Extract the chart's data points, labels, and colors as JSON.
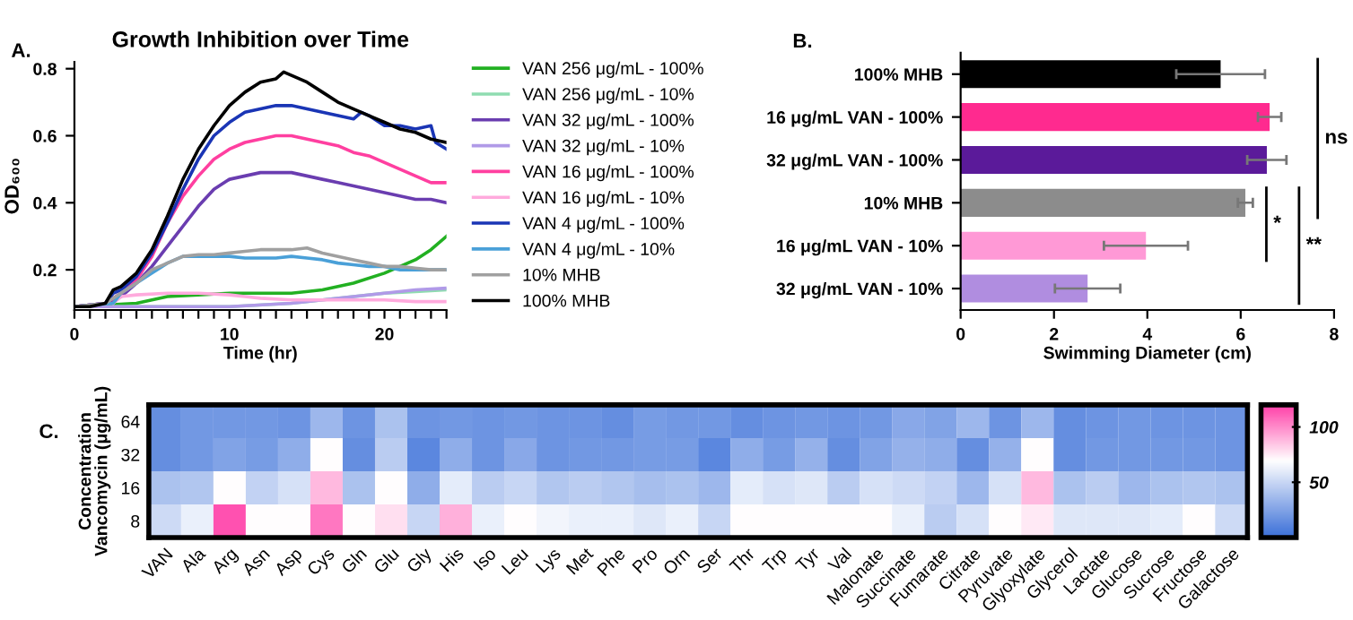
{
  "chart_data": [
    {
      "type": "line",
      "title": "Growth Inhibition over Time",
      "xlabel": "Time (hr)",
      "ylabel": "OD₆₀₀",
      "annotations": [
        "A."
      ],
      "xlim": [
        0,
        24
      ],
      "ylim": [
        0.08,
        0.82
      ],
      "xticks": [
        0,
        {
          "value": 1,
          "label": null
        },
        {
          "value": 2,
          "label": null
        },
        {
          "value": 3,
          "label": null
        },
        {
          "value": 4,
          "label": null
        },
        {
          "value": 5,
          "label": null
        },
        {
          "value": 6,
          "label": null
        },
        {
          "value": 7,
          "label": null
        },
        {
          "value": 8,
          "label": null
        },
        {
          "value": 9,
          "label": null
        },
        10,
        {
          "value": 11,
          "label": null
        },
        {
          "value": 12,
          "label": null
        },
        {
          "value": 13,
          "label": null
        },
        {
          "value": 14,
          "label": null
        },
        {
          "value": 15,
          "label": null
        },
        {
          "value": 16,
          "label": null
        },
        {
          "value": 17,
          "label": null
        },
        {
          "value": 18,
          "label": null
        },
        {
          "value": 19,
          "label": null
        },
        20,
        {
          "value": 21,
          "label": null
        },
        {
          "value": 22,
          "label": null
        },
        {
          "value": 23,
          "label": null
        },
        {
          "value": 24,
          "label": null
        }
      ],
      "yticks": [
        0.2,
        0.4,
        0.6,
        0.8
      ],
      "grid": false,
      "legend": "right",
      "marker": "none",
      "line_style": "solid",
      "series": [
        {
          "name": "VAN 256 μg/mL - 100%",
          "color": "#22b022",
          "x": [
            0,
            4,
            5,
            6,
            8,
            10,
            12,
            14,
            16,
            18,
            20,
            21,
            22,
            23,
            24
          ],
          "values": [
            0.09,
            0.1,
            0.11,
            0.12,
            0.125,
            0.13,
            0.13,
            0.13,
            0.14,
            0.16,
            0.19,
            0.21,
            0.23,
            0.26,
            0.3
          ]
        },
        {
          "name": "VAN 256 μg/mL - 10%",
          "color": "#8fdcb0",
          "x": [
            0,
            10,
            14,
            16,
            18,
            20,
            22,
            24
          ],
          "values": [
            0.09,
            0.09,
            0.1,
            0.11,
            0.12,
            0.13,
            0.135,
            0.14
          ]
        },
        {
          "name": "VAN 32 μg/mL - 100%",
          "color": "#6a3db0",
          "x": [
            0,
            2,
            3,
            4,
            5,
            6,
            7,
            8,
            9,
            10,
            11,
            12,
            13,
            14,
            15,
            16,
            17,
            18,
            19,
            20,
            21,
            22,
            23,
            24
          ],
          "values": [
            0.09,
            0.1,
            0.12,
            0.16,
            0.21,
            0.27,
            0.33,
            0.39,
            0.44,
            0.47,
            0.48,
            0.49,
            0.49,
            0.49,
            0.48,
            0.47,
            0.46,
            0.45,
            0.44,
            0.43,
            0.42,
            0.41,
            0.41,
            0.4
          ]
        },
        {
          "name": "VAN 32 μg/mL - 10%",
          "color": "#b09ae8",
          "x": [
            0,
            10,
            14,
            16,
            18,
            20,
            22,
            24
          ],
          "values": [
            0.09,
            0.09,
            0.1,
            0.11,
            0.12,
            0.13,
            0.14,
            0.145
          ]
        },
        {
          "name": "VAN 16 μg/mL - 100%",
          "color": "#ff3fa0",
          "x": [
            0,
            2,
            3,
            4,
            5,
            6,
            7,
            8,
            9,
            10,
            11,
            12,
            13,
            14,
            15,
            16,
            17,
            18,
            19,
            20,
            21,
            22,
            23,
            24
          ],
          "values": [
            0.09,
            0.1,
            0.13,
            0.17,
            0.24,
            0.34,
            0.42,
            0.48,
            0.53,
            0.56,
            0.58,
            0.59,
            0.6,
            0.6,
            0.59,
            0.58,
            0.57,
            0.55,
            0.54,
            0.52,
            0.5,
            0.48,
            0.46,
            0.46
          ]
        },
        {
          "name": "VAN 16 μg/mL - 10%",
          "color": "#ffaadd",
          "x": [
            2.5,
            3,
            4,
            6,
            8,
            10,
            11,
            12,
            14,
            16,
            18,
            20,
            22,
            24
          ],
          "values": [
            0.1,
            0.12,
            0.125,
            0.13,
            0.13,
            0.125,
            0.12,
            0.115,
            0.11,
            0.11,
            0.11,
            0.11,
            0.105,
            0.105
          ]
        },
        {
          "name": "VAN 4 μg/mL - 100%",
          "color": "#1a35b5",
          "x": [
            0,
            2,
            2.5,
            3,
            4,
            5,
            6,
            7,
            8,
            9,
            10,
            11,
            12,
            13,
            14,
            15,
            16,
            17,
            18,
            18.5,
            19,
            20,
            21,
            22,
            23,
            23.3,
            24
          ],
          "values": [
            0.09,
            0.1,
            0.13,
            0.14,
            0.18,
            0.25,
            0.34,
            0.44,
            0.53,
            0.6,
            0.64,
            0.67,
            0.68,
            0.69,
            0.69,
            0.68,
            0.67,
            0.66,
            0.65,
            0.67,
            0.66,
            0.63,
            0.63,
            0.62,
            0.63,
            0.58,
            0.56
          ]
        },
        {
          "name": "VAN 4 μg/mL - 10%",
          "color": "#4aa0d8",
          "x": [
            0,
            2.5,
            3,
            4,
            5,
            6,
            7,
            8,
            9,
            10,
            11,
            12,
            13,
            14,
            15,
            16,
            17,
            18,
            19,
            20,
            21,
            22,
            23,
            24
          ],
          "values": [
            0.09,
            0.1,
            0.13,
            0.16,
            0.19,
            0.22,
            0.24,
            0.24,
            0.24,
            0.24,
            0.235,
            0.235,
            0.235,
            0.24,
            0.235,
            0.23,
            0.22,
            0.215,
            0.21,
            0.21,
            0.2,
            0.2,
            0.2,
            0.2
          ]
        },
        {
          "name": "10% MHB",
          "color": "#a0a0a0",
          "x": [
            0,
            2,
            3,
            4,
            5,
            6,
            7,
            8,
            9,
            10,
            11,
            12,
            13,
            14,
            15,
            16,
            17,
            18,
            19,
            20,
            21,
            22,
            23,
            24
          ],
          "values": [
            0.09,
            0.1,
            0.13,
            0.16,
            0.2,
            0.22,
            0.24,
            0.245,
            0.245,
            0.25,
            0.255,
            0.26,
            0.26,
            0.26,
            0.265,
            0.25,
            0.24,
            0.23,
            0.22,
            0.21,
            0.21,
            0.205,
            0.2,
            0.2
          ]
        },
        {
          "name": "100% MHB",
          "color": "#000000",
          "x": [
            0,
            1,
            2,
            2.5,
            3,
            4,
            5,
            6,
            7,
            8,
            9,
            10,
            11,
            12,
            13,
            13.5,
            14,
            15,
            16,
            17,
            18,
            19,
            20,
            21,
            22,
            23,
            24
          ],
          "values": [
            0.09,
            0.09,
            0.1,
            0.14,
            0.15,
            0.19,
            0.26,
            0.36,
            0.47,
            0.56,
            0.63,
            0.69,
            0.73,
            0.76,
            0.77,
            0.79,
            0.78,
            0.76,
            0.73,
            0.7,
            0.68,
            0.66,
            0.64,
            0.62,
            0.61,
            0.59,
            0.58
          ]
        }
      ]
    },
    {
      "type": "bar",
      "orientation": "horizontal",
      "xlabel": "Swimming Diameter (cm)",
      "annotations": [
        "B.",
        "ns",
        "*",
        "**"
      ],
      "categories": [
        "100% MHB",
        "16 μg/mL VAN - 100%",
        "32 μg/mL VAN - 100%",
        "10% MHB",
        "16 μg/mL VAN - 10%",
        "32 μg/mL VAN - 10%"
      ],
      "values": [
        5.57,
        6.62,
        6.56,
        6.1,
        3.97,
        2.72
      ],
      "errors": [
        0.95,
        0.25,
        0.42,
        0.16,
        0.9,
        0.7
      ],
      "colors": [
        "#000000",
        "#ff2a8f",
        "#5b1a9a",
        "#8c8c8c",
        "#ff99d6",
        "#b08de0"
      ],
      "xlim": [
        0,
        8
      ],
      "xticks": [
        0,
        2,
        4,
        6,
        8
      ],
      "grid": false
    },
    {
      "type": "heatmap",
      "ylabel": "Concentration\nVancomycin (μg/mL)",
      "annotations": [
        "C."
      ],
      "categories": [
        "VAN",
        "Ala",
        "Arg",
        "Asn",
        "Asp",
        "Cys",
        "Gln",
        "Glu",
        "Gly",
        "His",
        "Iso",
        "Leu",
        "Lys",
        "Met",
        "Phe",
        "Pro",
        "Orn",
        "Ser",
        "Thr",
        "Trp",
        "Tyr",
        "Val",
        "Malonate",
        "Succinate",
        "Fumarate",
        "Citrate",
        "Pyruvate",
        "Glyoxylate",
        "Glycerol",
        "Lactate",
        "Glucose",
        "Sucrose",
        "Fructose",
        "Galactose"
      ],
      "y_categories": [
        "64",
        "32",
        "16",
        "8"
      ],
      "cells": [
        [
          15,
          20,
          20,
          20,
          18,
          35,
          18,
          40,
          18,
          20,
          18,
          20,
          18,
          18,
          15,
          22,
          20,
          20,
          15,
          18,
          20,
          18,
          20,
          28,
          25,
          35,
          18,
          35,
          15,
          18,
          20,
          18,
          18,
          18
        ],
        [
          15,
          20,
          25,
          22,
          30,
          70,
          15,
          45,
          12,
          30,
          18,
          28,
          18,
          20,
          20,
          22,
          22,
          12,
          30,
          22,
          32,
          15,
          25,
          32,
          30,
          15,
          32,
          70,
          15,
          20,
          20,
          20,
          20,
          18
        ],
        [
          40,
          42,
          70,
          48,
          55,
          88,
          40,
          70,
          30,
          60,
          45,
          50,
          42,
          45,
          42,
          38,
          40,
          35,
          60,
          55,
          58,
          45,
          55,
          52,
          48,
          35,
          55,
          88,
          40,
          45,
          35,
          40,
          42,
          40
        ],
        [
          52,
          62,
          115,
          70,
          70,
          105,
          70,
          78,
          50,
          90,
          62,
          70,
          65,
          62,
          62,
          58,
          62,
          50,
          70,
          70,
          70,
          70,
          70,
          62,
          45,
          55,
          70,
          75,
          58,
          58,
          58,
          60,
          70,
          52
        ]
      ],
      "clim": [
        0,
        120
      ],
      "cticks": [
        50,
        100
      ]
    }
  ]
}
